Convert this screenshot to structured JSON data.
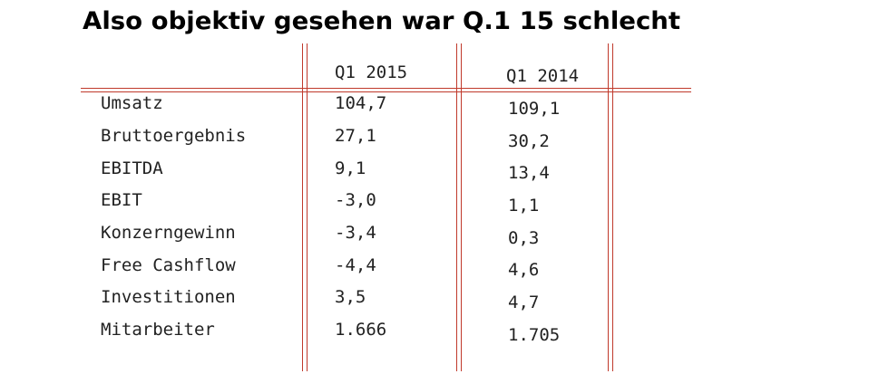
{
  "title": "Also objektiv gesehen war Q.1 15 schlecht",
  "columns": [
    "Q1 2015",
    "Q1 2014"
  ],
  "rows": [
    {
      "label": "Umsatz",
      "q1_2015": "104,7",
      "q1_2014": "109,1"
    },
    {
      "label": "Bruttoergebnis",
      "q1_2015": "27,1",
      "q1_2014": "30,2"
    },
    {
      "label": "EBITDA",
      "q1_2015": "9,1",
      "q1_2014": "13,4"
    },
    {
      "label": "EBIT",
      "q1_2015": "-3,0",
      "q1_2014": "1,1"
    },
    {
      "label": "Konzerngewinn",
      "q1_2015": "-3,4",
      "q1_2014": "0,3"
    },
    {
      "label": "Free Cashflow",
      "q1_2015": "-4,4",
      "q1_2014": "4,6"
    },
    {
      "label": "Investitionen",
      "q1_2015": "3,5",
      "q1_2014": "4,7"
    },
    {
      "label": "Mitarbeiter",
      "q1_2015": "1.666",
      "q1_2014": "1.705"
    }
  ],
  "colors": {
    "rule": "#c0392b",
    "text": "#222222"
  }
}
